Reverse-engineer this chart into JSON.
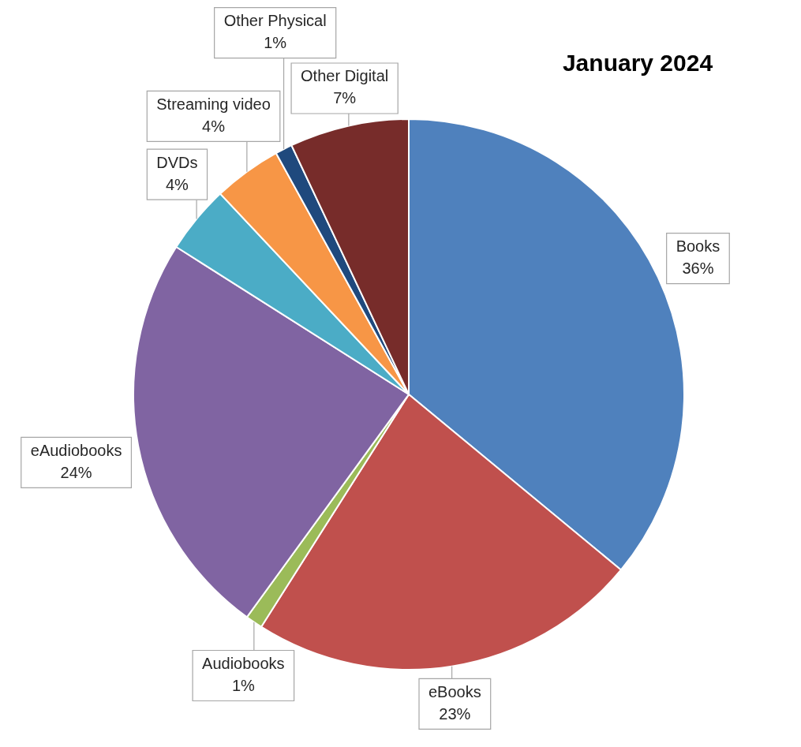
{
  "chart_data": {
    "type": "pie",
    "title": "January 2024",
    "categories": [
      "Books",
      "eBooks",
      "Audiobooks",
      "eAudiobooks",
      "DVDs",
      "Streaming video",
      "Other Physical",
      "Other Digital"
    ],
    "values": [
      36,
      23,
      1,
      24,
      4,
      4,
      1,
      7
    ],
    "value_labels": [
      "36%",
      "23%",
      "1%",
      "24%",
      "4%",
      "4%",
      "1%",
      "7%"
    ],
    "colors": [
      "#4f81bd",
      "#c0504d",
      "#9bbb59",
      "#8064a2",
      "#4bacc6",
      "#f79646",
      "#1f497d",
      "#772c2a"
    ],
    "legend": false
  }
}
